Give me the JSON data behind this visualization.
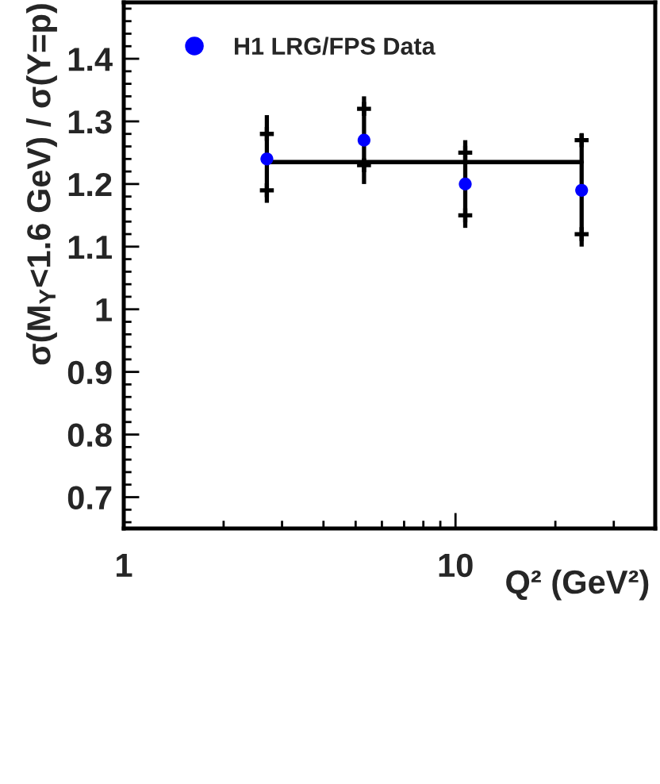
{
  "chart_data": {
    "type": "scatter",
    "xlabel": "Q² (GeV²)",
    "ylabel": "σ(M$_{Y}$<1.6 GeV) / σ(Y=p)",
    "log": "x",
    "xlim": [
      1,
      40
    ],
    "xticks": [
      1,
      10
    ],
    "ylim": [
      0.65,
      1.49
    ],
    "yticks": [
      0.7,
      0.8,
      0.9,
      1,
      1.1,
      1.2,
      1.3,
      1.4
    ],
    "legend": "top left",
    "series": [
      {
        "name": "H1 LRG/FPS Data",
        "color": "#0000ff",
        "marker": "circle",
        "x": [
          2.7,
          5.3,
          10.7,
          24
        ],
        "values": [
          1.24,
          1.27,
          1.2,
          1.19
        ],
        "errors": [
          [
            1.17,
            1.31
          ],
          [
            1.2,
            1.34
          ],
          [
            1.13,
            1.27
          ],
          [
            1.1,
            1.28
          ]
        ]
      },
      {
        "color": "#000000",
        "marker": "cross",
        "x": [
          2.7,
          2.7,
          5.3,
          5.3,
          10.7,
          10.7,
          24,
          24
        ],
        "values": [
          1.19,
          1.28,
          1.23,
          1.32,
          1.15,
          1.25,
          1.12,
          1.27
        ]
      },
      {
        "type": "line",
        "color": "#000000",
        "line_style": "solid",
        "x": [
          2.7,
          24
        ],
        "values": [
          1.235,
          1.235
        ]
      }
    ]
  }
}
